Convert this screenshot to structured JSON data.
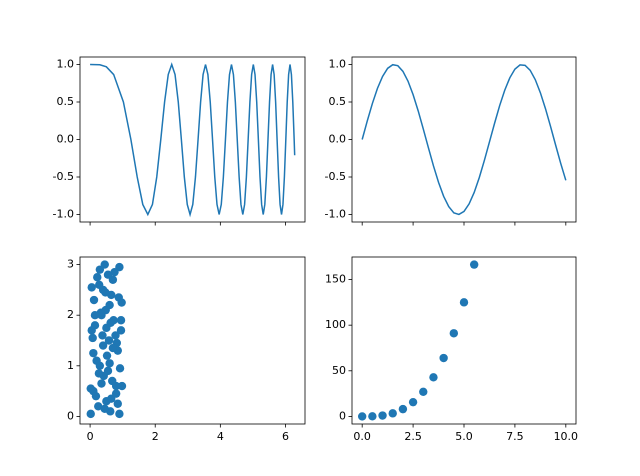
{
  "chart_data": [
    {
      "type": "line",
      "color": "#1f77b4",
      "xlim": [
        -0.31,
        6.6
      ],
      "ylim": [
        -1.1,
        1.1
      ],
      "yticks": [
        {
          "value": -1,
          "label": "-1.0"
        },
        {
          "value": -0.5,
          "label": "-0.5"
        },
        {
          "value": 0,
          "label": "0.0"
        },
        {
          "value": 0.5,
          "label": "0.5"
        },
        {
          "value": 1,
          "label": "1.0"
        }
      ],
      "x": [
        0,
        0.3,
        0.5,
        0.724,
        1.023,
        1.253,
        1.447,
        1.618,
        1.773,
        1.915,
        2.047,
        2.171,
        2.288,
        2.4,
        2.507,
        2.609,
        2.708,
        2.803,
        2.894,
        2.984,
        3.07,
        3.154,
        3.236,
        3.316,
        3.394,
        3.47,
        3.545,
        3.618,
        3.69,
        3.76,
        3.829,
        3.897,
        3.963,
        4.029,
        4.093,
        4.157,
        4.219,
        4.281,
        4.342,
        4.402,
        4.461,
        4.519,
        4.577,
        4.633,
        4.69,
        4.745,
        4.8,
        4.854,
        4.908,
        4.961,
        5.013,
        5.065,
        5.117,
        5.168,
        5.218,
        5.268,
        5.317,
        5.366,
        5.415,
        5.463,
        5.511,
        5.558,
        5.605,
        5.652,
        5.698,
        5.743,
        5.789,
        5.834,
        5.879,
        5.923,
        5.967,
        6.011,
        6.054,
        6.097,
        6.14,
        6.183,
        6.225,
        6.267,
        6.283
      ],
      "values": [
        1,
        0.996,
        0.969,
        0.866,
        0.5,
        0,
        -0.5,
        -0.866,
        -1,
        -0.866,
        -0.5,
        0,
        0.5,
        0.866,
        1,
        0.866,
        0.5,
        0,
        -0.5,
        -0.866,
        -1,
        -0.866,
        -0.5,
        0,
        0.5,
        0.866,
        1,
        0.866,
        0.5,
        0,
        -0.5,
        -0.866,
        -1,
        -0.866,
        -0.5,
        0,
        0.5,
        0.866,
        1,
        0.866,
        0.5,
        0,
        -0.5,
        -0.866,
        -1,
        -0.866,
        -0.5,
        0,
        0.5,
        0.866,
        1,
        0.866,
        0.5,
        0,
        -0.5,
        -0.866,
        -1,
        -0.866,
        -0.5,
        0,
        0.5,
        0.866,
        1,
        0.866,
        0.5,
        0,
        -0.5,
        -0.866,
        -1,
        -0.866,
        -0.5,
        0,
        0.5,
        0.866,
        1,
        0.866,
        0.5,
        0,
        -0.21
      ]
    },
    {
      "type": "line",
      "color": "#1f77b4",
      "xlim": [
        -0.5,
        10.5
      ],
      "ylim": [
        -1.1,
        1.1
      ],
      "yticks": [
        {
          "value": -1,
          "label": "-1.0"
        },
        {
          "value": -0.5,
          "label": "-0.5"
        },
        {
          "value": 0,
          "label": "0.0"
        },
        {
          "value": 0.5,
          "label": "0.5"
        },
        {
          "value": 1,
          "label": "1.0"
        }
      ],
      "x": [
        0,
        0.25,
        0.5,
        0.75,
        1,
        1.25,
        1.5,
        1.75,
        2,
        2.25,
        2.5,
        2.75,
        3,
        3.25,
        3.5,
        3.75,
        4,
        4.25,
        4.5,
        4.75,
        5,
        5.25,
        5.5,
        5.75,
        6,
        6.25,
        6.5,
        6.75,
        7,
        7.25,
        7.5,
        7.75,
        8,
        8.25,
        8.5,
        8.75,
        9,
        9.25,
        9.5,
        9.75,
        10
      ],
      "values": [
        0,
        0.247,
        0.479,
        0.682,
        0.841,
        0.949,
        0.997,
        0.984,
        0.909,
        0.778,
        0.598,
        0.382,
        0.141,
        -0.108,
        -0.351,
        -0.572,
        -0.757,
        -0.895,
        -0.978,
        -0.999,
        -0.959,
        -0.859,
        -0.706,
        -0.508,
        -0.279,
        -0.033,
        0.215,
        0.451,
        0.657,
        0.823,
        0.938,
        0.995,
        0.989,
        0.923,
        0.798,
        0.624,
        0.412,
        0.174,
        -0.075,
        -0.319,
        -0.544
      ]
    },
    {
      "type": "scatter",
      "color": "#1f77b4",
      "xlim": [
        -0.31,
        6.6
      ],
      "ylim": [
        -0.15,
        3.15
      ],
      "xticks": [
        0,
        2,
        4,
        6
      ],
      "yticks": [
        0,
        1,
        2,
        3
      ],
      "x": [
        0.05,
        0.1,
        0.02,
        0.3,
        0.45,
        0.6,
        0.9,
        0.95,
        0.4,
        0.5,
        0.35,
        0.2,
        0.8,
        0.7,
        0.15,
        0.55,
        0.65,
        0.25,
        0.85,
        0.98,
        0.12,
        0.38,
        0.48,
        0.62,
        0.75,
        0.9,
        0.3,
        0.05,
        0.42,
        0.58,
        0.72,
        0.88,
        0.18,
        0.28,
        0.52,
        0.68,
        0.02,
        0.95,
        0.33,
        0.45,
        0.6,
        0.82,
        0.1,
        0.22,
        0.4,
        0.5,
        0.65,
        0.78,
        0.92,
        0.15,
        0.35,
        0.55,
        0.7,
        0.85,
        0.08,
        0.27,
        0.47,
        0.63,
        0.8,
        0.97
      ],
      "values": [
        2.55,
        0.5,
        0.05,
        2.9,
        3.0,
        2.2,
        2.95,
        1.7,
        1.4,
        0.3,
        2.0,
        1.1,
        0.6,
        2.7,
        1.8,
        0.9,
        2.4,
        0.2,
        1.3,
        0.6,
        2.3,
        1.6,
        2.1,
        0.1,
        2.85,
        0.05,
        1.0,
        1.7,
        0.8,
        1.5,
        1.9,
        2.35,
        0.4,
        2.6,
        1.2,
        0.7,
        0.55,
        1.9,
        2.05,
        0.15,
        1.05,
        1.45,
        1.25,
        2.75,
        2.5,
        1.75,
        0.35,
        1.6,
        0.95,
        2.0,
        0.65,
        2.8,
        1.35,
        0.25,
        1.55,
        0.85,
        2.45,
        1.85,
        0.45,
        2.25
      ]
    },
    {
      "type": "scatter",
      "color": "#1f77b4",
      "xlim": [
        -0.5,
        10.5
      ],
      "ylim": [
        -8.3,
        174.7
      ],
      "xticks": [
        {
          "value": 0,
          "label": "0.0"
        },
        {
          "value": 2.5,
          "label": "2.5"
        },
        {
          "value": 5,
          "label": "5.0"
        },
        {
          "value": 7.5,
          "label": "7.5"
        },
        {
          "value": 10,
          "label": "10.0"
        }
      ],
      "yticks": [
        0,
        50,
        100,
        150
      ],
      "x": [
        0,
        0.5,
        1,
        1.5,
        2,
        2.5,
        3,
        3.5,
        4,
        4.5,
        5,
        5.5
      ],
      "values": [
        0,
        0.125,
        1,
        3.375,
        8,
        15.625,
        27,
        42.875,
        64,
        91.125,
        125,
        166.375
      ]
    }
  ]
}
